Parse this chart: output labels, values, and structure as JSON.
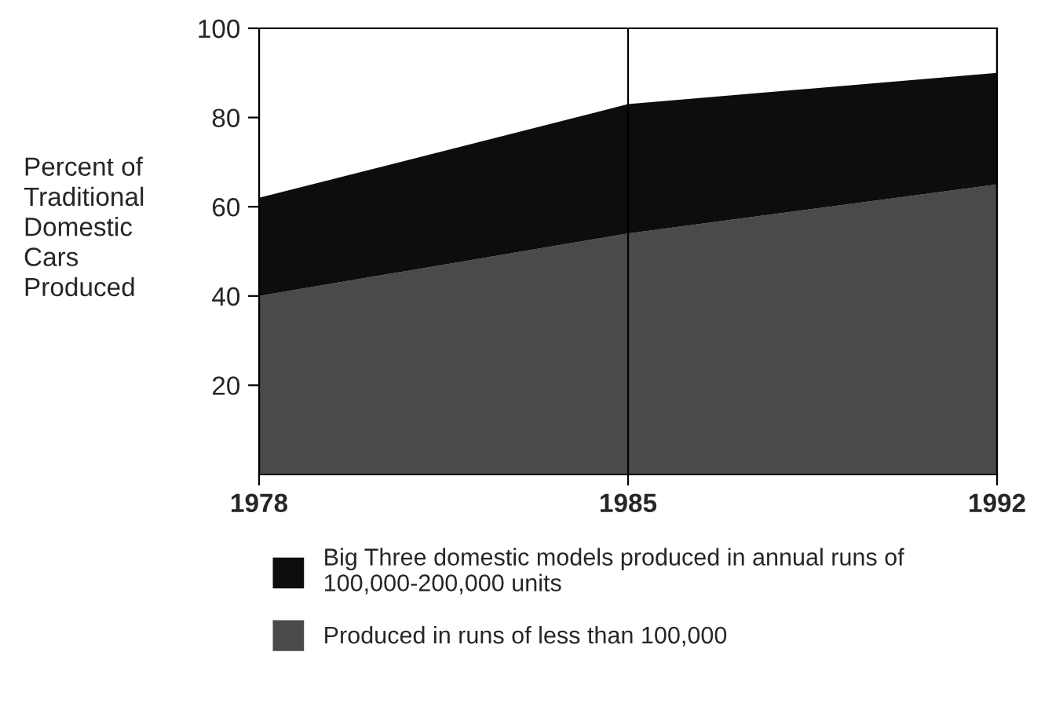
{
  "chart_data": {
    "type": "area",
    "stacked": true,
    "ylabel": "Percent of\nTraditional\nDomestic\nCars\nProduced",
    "x": [
      1978,
      1985,
      1992
    ],
    "series": [
      {
        "name": "Produced in runs of less than 100,000",
        "color": "#4a4a4a",
        "values": [
          40,
          54,
          65
        ]
      },
      {
        "name": "Big Three domestic models produced in annual runs of\n100,000-200,000 units",
        "color": "#0d0d0d",
        "values": [
          22,
          29,
          25
        ]
      }
    ],
    "xlim": [
      1978,
      1992
    ],
    "xticks": [
      1978,
      1985,
      1992
    ],
    "ylim": [
      0,
      100
    ],
    "yticks": [
      20,
      40,
      60,
      80,
      100
    ],
    "grid": "x",
    "legend": "bottom"
  }
}
